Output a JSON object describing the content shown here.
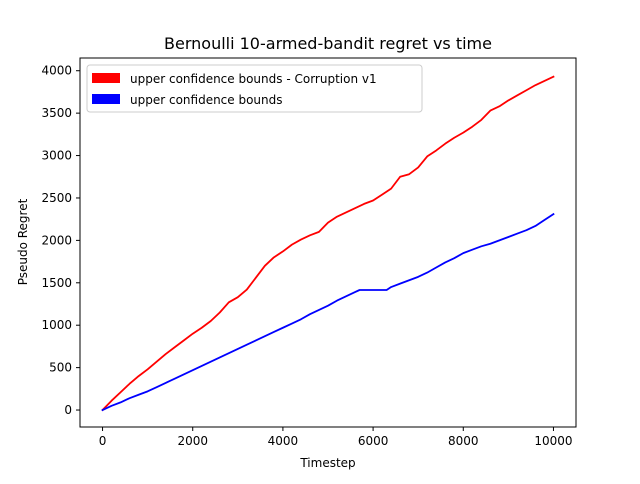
{
  "chart_data": {
    "type": "line",
    "title": "Bernoulli 10-armed-bandit regret vs time",
    "xlabel": "Timestep",
    "ylabel": "Pseudo Regret",
    "xlim": [
      -500,
      10500
    ],
    "ylim": [
      -200,
      4150
    ],
    "xticks": [
      0,
      2000,
      4000,
      6000,
      8000,
      10000
    ],
    "xtick_labels": [
      "0",
      "2000",
      "4000",
      "6000",
      "8000",
      "10000"
    ],
    "yticks": [
      0,
      500,
      1000,
      1500,
      2000,
      2500,
      3000,
      3500,
      4000
    ],
    "ytick_labels": [
      "0",
      "500",
      "1000",
      "1500",
      "2000",
      "2500",
      "3000",
      "3500",
      "4000"
    ],
    "grid": false,
    "legend_position": "top-left",
    "series": [
      {
        "name": "upper confidence bounds - Corruption v1",
        "color": "#ff0000",
        "x": [
          0,
          200,
          400,
          600,
          800,
          1000,
          1200,
          1400,
          1600,
          1800,
          2000,
          2200,
          2400,
          2600,
          2800,
          3000,
          3200,
          3400,
          3600,
          3800,
          4000,
          4200,
          4400,
          4600,
          4800,
          5000,
          5200,
          5400,
          5600,
          5800,
          6000,
          6200,
          6400,
          6600,
          6800,
          7000,
          7200,
          7400,
          7600,
          7800,
          8000,
          8200,
          8400,
          8600,
          8800,
          9000,
          9200,
          9400,
          9600,
          9800,
          10000
        ],
        "y": [
          0,
          110,
          210,
          310,
          400,
          480,
          570,
          660,
          740,
          820,
          900,
          970,
          1050,
          1150,
          1270,
          1330,
          1420,
          1560,
          1700,
          1800,
          1870,
          1950,
          2010,
          2060,
          2100,
          2210,
          2280,
          2330,
          2380,
          2430,
          2470,
          2540,
          2610,
          2750,
          2780,
          2860,
          2990,
          3060,
          3140,
          3210,
          3270,
          3340,
          3420,
          3530,
          3580,
          3650,
          3710,
          3770,
          3830,
          3880,
          3930
        ]
      },
      {
        "name": "upper confidence bounds",
        "color": "#0000ff",
        "x": [
          0,
          200,
          400,
          600,
          800,
          1000,
          1200,
          1400,
          1600,
          1800,
          2000,
          2200,
          2400,
          2600,
          2800,
          3000,
          3200,
          3400,
          3600,
          3800,
          4000,
          4200,
          4400,
          4600,
          4800,
          5000,
          5200,
          5400,
          5600,
          5700,
          5800,
          6000,
          6200,
          6300,
          6400,
          6600,
          6800,
          7000,
          7200,
          7400,
          7600,
          7800,
          8000,
          8200,
          8400,
          8600,
          8800,
          9000,
          9200,
          9400,
          9600,
          9800,
          10000
        ],
        "y": [
          0,
          50,
          90,
          140,
          180,
          220,
          270,
          320,
          370,
          420,
          470,
          520,
          570,
          620,
          670,
          720,
          770,
          820,
          870,
          920,
          970,
          1020,
          1070,
          1130,
          1180,
          1230,
          1290,
          1340,
          1390,
          1415,
          1415,
          1415,
          1415,
          1415,
          1450,
          1490,
          1530,
          1570,
          1620,
          1680,
          1740,
          1790,
          1850,
          1890,
          1930,
          1960,
          2000,
          2040,
          2080,
          2120,
          2170,
          2240,
          2310
        ]
      }
    ]
  }
}
